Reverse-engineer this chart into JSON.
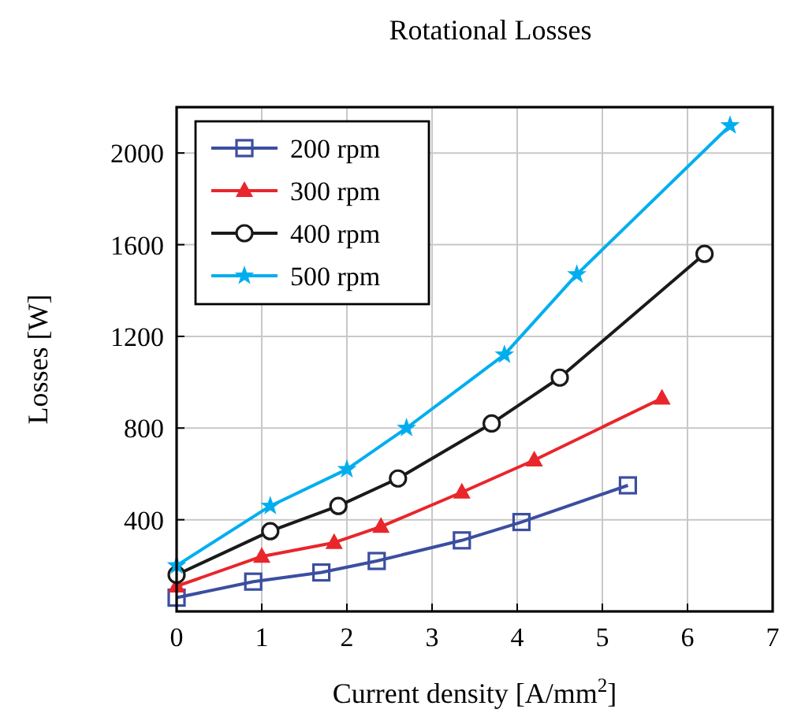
{
  "chart_data": {
    "type": "line",
    "title": "Rotational Losses",
    "xlabel": "Current density [A/mm$^{2}$]",
    "ylabel": "Losses [W]",
    "xlim": [
      0,
      7
    ],
    "ylim": [
      0,
      2200
    ],
    "xticks": [
      0,
      1,
      2,
      3,
      4,
      5,
      6,
      7
    ],
    "yticks": [
      400,
      800,
      1200,
      1600,
      2000
    ],
    "grid": true,
    "legend": "top left",
    "line_style": "solid",
    "series": [
      {
        "name": "200 rpm",
        "color": "#3b4ea0",
        "marker": "square",
        "x": [
          0,
          0.9,
          1.7,
          2.35,
          3.35,
          4.05,
          5.3
        ],
        "values": [
          60,
          130,
          170,
          220,
          310,
          390,
          550
        ]
      },
      {
        "name": "300 rpm",
        "color": "#e8262b",
        "marker": "triangle",
        "x": [
          0,
          1.0,
          1.85,
          2.4,
          3.35,
          4.2,
          5.7
        ],
        "values": [
          110,
          240,
          300,
          370,
          520,
          660,
          930
        ]
      },
      {
        "name": "400 rpm",
        "color": "#1a1a1a",
        "marker": "circle",
        "x": [
          0,
          1.1,
          1.9,
          2.6,
          3.7,
          4.5,
          6.2
        ],
        "values": [
          160,
          350,
          460,
          580,
          820,
          1020,
          1560
        ]
      },
      {
        "name": "500 rpm",
        "color": "#00aeef",
        "marker": "star",
        "x": [
          0,
          1.1,
          2.0,
          2.7,
          3.85,
          4.7,
          6.5
        ],
        "values": [
          200,
          460,
          620,
          800,
          1120,
          1470,
          2120
        ]
      }
    ]
  }
}
